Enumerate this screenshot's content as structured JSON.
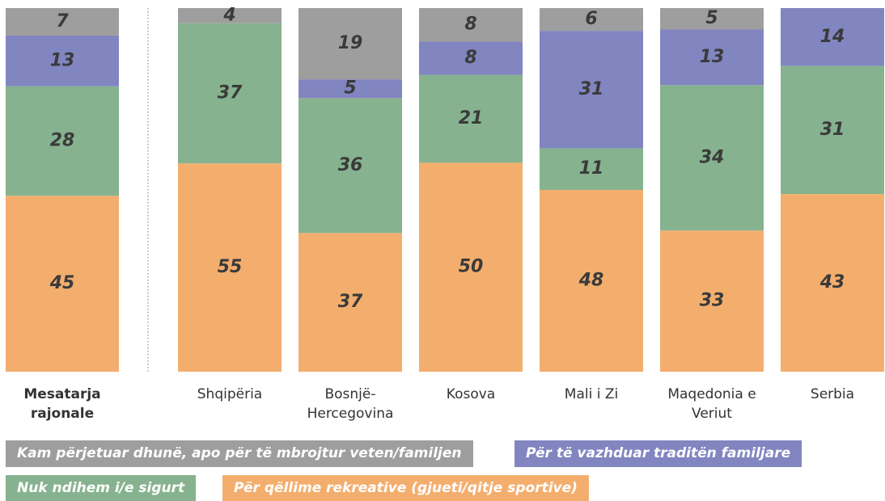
{
  "chart_data": {
    "type": "bar",
    "stacked": "percent",
    "categories": [
      "Mesatarja rajonale",
      "Shqipëria",
      "Bosnjë-Hercegovina",
      "Kosova",
      "Mali i Zi",
      "Maqedonia e Veriut",
      "Serbia"
    ],
    "series": [
      {
        "name": "Për qëllime rekreative (gjueti/qitje sportive)",
        "color": "#f3ae6e",
        "values": [
          45,
          55,
          37,
          50,
          48,
          33,
          43
        ]
      },
      {
        "name": "Nuk ndihem i/e sigurt",
        "color": "#86b28f",
        "values": [
          28,
          37,
          36,
          21,
          11,
          34,
          31
        ]
      },
      {
        "name": "Për të vazhduar traditën familjare",
        "color": "#8185c0",
        "values": [
          13,
          null,
          5,
          8,
          31,
          13,
          14
        ]
      },
      {
        "name": "Kam përjetuar dhunë, apo për të mbrojtur veten/familjen",
        "color": "#9d9e9d",
        "values": [
          7,
          4,
          19,
          8,
          6,
          5,
          null
        ]
      }
    ]
  }
}
